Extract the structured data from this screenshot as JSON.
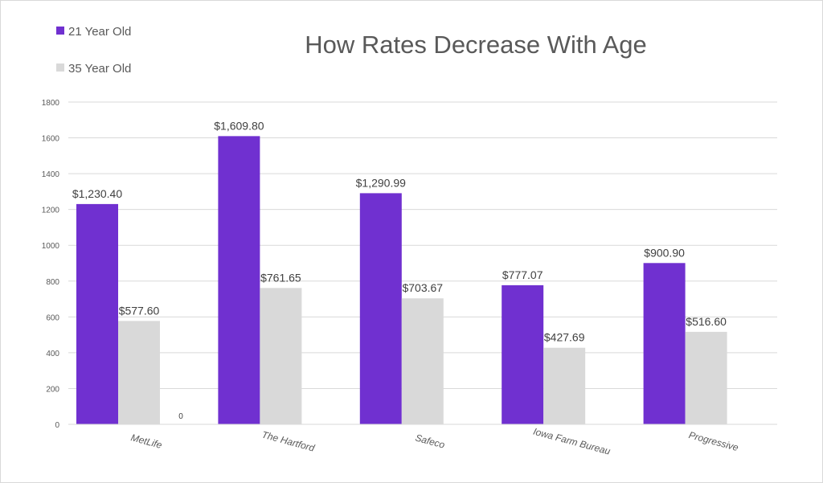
{
  "chart_data": {
    "type": "bar",
    "title": "How Rates Decrease With Age",
    "xlabel": "",
    "ylabel": "",
    "ylim": [
      0,
      1800
    ],
    "yticks": [
      "0",
      "200",
      "400",
      "600",
      "800",
      "1000",
      "1200",
      "1400",
      "1600",
      "1800"
    ],
    "grid": true,
    "legend_position": "top-left",
    "categories": [
      "MetLife",
      "The Hartford",
      "Safeco",
      "Iowa Farm Bureau",
      "Progressive"
    ],
    "series": [
      {
        "name": "21 Year Old",
        "color": "#7030d0",
        "values": [
          1230.4,
          1609.8,
          1290.99,
          777.07,
          900.9
        ],
        "labels": [
          "$1,230.40",
          "$1,609.80",
          "$1,290.99",
          "$777.07",
          "$900.90"
        ]
      },
      {
        "name": "35 Year Old",
        "color": "#d9d9d9",
        "values": [
          577.6,
          761.65,
          703.67,
          427.69,
          516.6
        ],
        "labels": [
          "$577.60",
          "$761.65",
          "$703.67",
          "$427.69",
          "$516.60"
        ]
      }
    ],
    "annotations": [
      {
        "category": "MetLife",
        "text": "0"
      }
    ]
  }
}
